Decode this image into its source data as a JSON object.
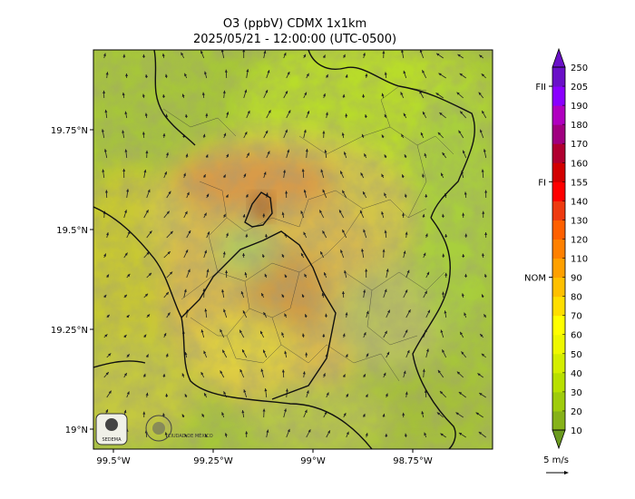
{
  "title": {
    "line1": "O3 (ppbV) CDMX 1x1km",
    "line2": "2025/05/21 - 12:00:00 (UTC-0500)"
  },
  "axes": {
    "y_ticks": [
      {
        "value": 19.75,
        "label": "19.75°N"
      },
      {
        "value": 19.5,
        "label": "19.5°N"
      },
      {
        "value": 19.25,
        "label": "19.25°N"
      },
      {
        "value": 19.0,
        "label": "19°N"
      }
    ],
    "x_ticks": [
      {
        "value": -99.5,
        "label": "99.5°W"
      },
      {
        "value": -99.25,
        "label": "99.25°W"
      },
      {
        "value": -99.0,
        "label": "99°W"
      },
      {
        "value": -98.75,
        "label": "98.75°W"
      }
    ],
    "lon_range": [
      -99.55,
      -98.55
    ],
    "lat_range": [
      18.95,
      19.95
    ]
  },
  "colorbar": {
    "levels": [
      10,
      20,
      30,
      40,
      50,
      60,
      70,
      80,
      90,
      110,
      120,
      130,
      140,
      155,
      160,
      170,
      180,
      190,
      205,
      250
    ],
    "labels": [
      "10",
      "20",
      "30",
      "40",
      "50",
      "60",
      "70",
      "80",
      "90",
      "110",
      "120",
      "130",
      "140",
      "155",
      "160",
      "170",
      "180",
      "190",
      "205",
      "250"
    ],
    "colors": [
      "#6a9a1e",
      "#86b219",
      "#9fcc0c",
      "#b8e000",
      "#d4ee00",
      "#eef800",
      "#ffff00",
      "#ffde00",
      "#ffc000",
      "#ffa000",
      "#ff8000",
      "#ff6000",
      "#ee3a10",
      "#ff0000",
      "#d20000",
      "#b00030",
      "#a00080",
      "#b000c0",
      "#8a00ff",
      "#6a10c8"
    ],
    "thresholds": [
      {
        "label": "NOM",
        "value": 90
      },
      {
        "label": "FI",
        "value": 155
      },
      {
        "label": "FII",
        "value": 205
      }
    ],
    "extend": "both"
  },
  "wind_key": {
    "label": "5 m/s"
  },
  "logos": [
    {
      "name": "sedema-logo",
      "text": "SEDEMA"
    },
    {
      "name": "cdmx-logo",
      "text": "CIUDAD DE MÉXICO"
    }
  ]
}
